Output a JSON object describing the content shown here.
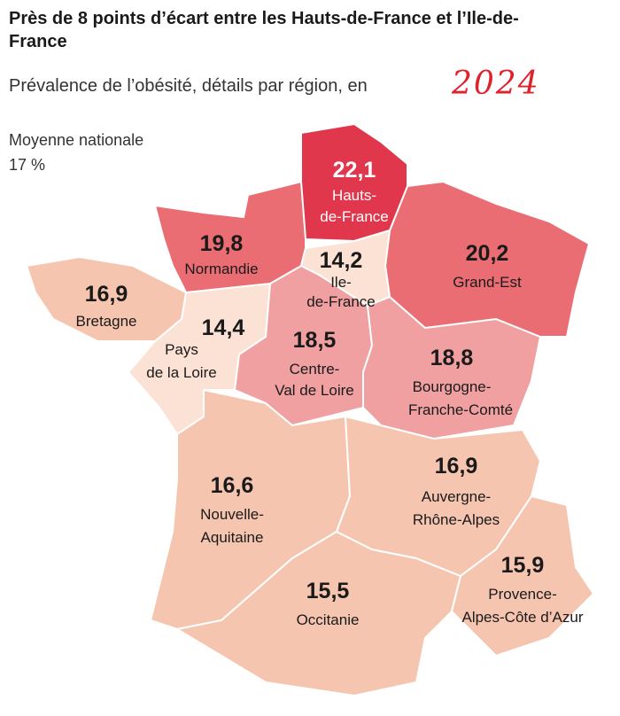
{
  "title": "Près de 8 points d’écart entre les Hauts-de-France et l’Ile-de-France",
  "subtitle": "Prévalence de l’obésité, détails par région, en",
  "year_annotation": "2024",
  "national_average": {
    "label": "Moyenne nationale",
    "value": "17 %"
  },
  "colors": {
    "hauts_de_france": "#e0374c",
    "high": "#ea6d73",
    "mid": "#f0a0a0",
    "low": "#f6c5b0",
    "lowest": "#fbe2d4",
    "annotation": "#e0202a"
  },
  "regions": [
    {
      "id": "hauts-de-france",
      "value": "22,1",
      "name_lines": [
        "Hauts-",
        "de-France"
      ]
    },
    {
      "id": "normandie",
      "value": "19,8",
      "name_lines": [
        "Normandie"
      ]
    },
    {
      "id": "ile-de-france",
      "value": "14,2",
      "name_lines": [
        "Ile-",
        "de-France"
      ]
    },
    {
      "id": "grand-est",
      "value": "20,2",
      "name_lines": [
        "Grand-Est"
      ]
    },
    {
      "id": "bretagne",
      "value": "16,9",
      "name_lines": [
        "Bretagne"
      ]
    },
    {
      "id": "pays-de-la-loire",
      "value": "14,4",
      "name_lines": [
        "Pays",
        "de la Loire"
      ]
    },
    {
      "id": "centre-val-de-loire",
      "value": "18,5",
      "name_lines": [
        "Centre-",
        "Val de Loire"
      ]
    },
    {
      "id": "bourgogne-franche-comte",
      "value": "18,8",
      "name_lines": [
        "Bourgogne-",
        "Franche-Comté"
      ]
    },
    {
      "id": "nouvelle-aquitaine",
      "value": "16,6",
      "name_lines": [
        "Nouvelle-",
        "Aquitaine"
      ]
    },
    {
      "id": "auvergne-rhone-alpes",
      "value": "16,9",
      "name_lines": [
        "Auvergne-",
        "Rhône-Alpes"
      ]
    },
    {
      "id": "occitanie",
      "value": "15,5",
      "name_lines": [
        "Occitanie"
      ]
    },
    {
      "id": "provence-alpes-cote-d-azur",
      "value": "15,9",
      "name_lines": [
        "Provence-",
        "Alpes-Côte d’Azur"
      ]
    }
  ]
}
